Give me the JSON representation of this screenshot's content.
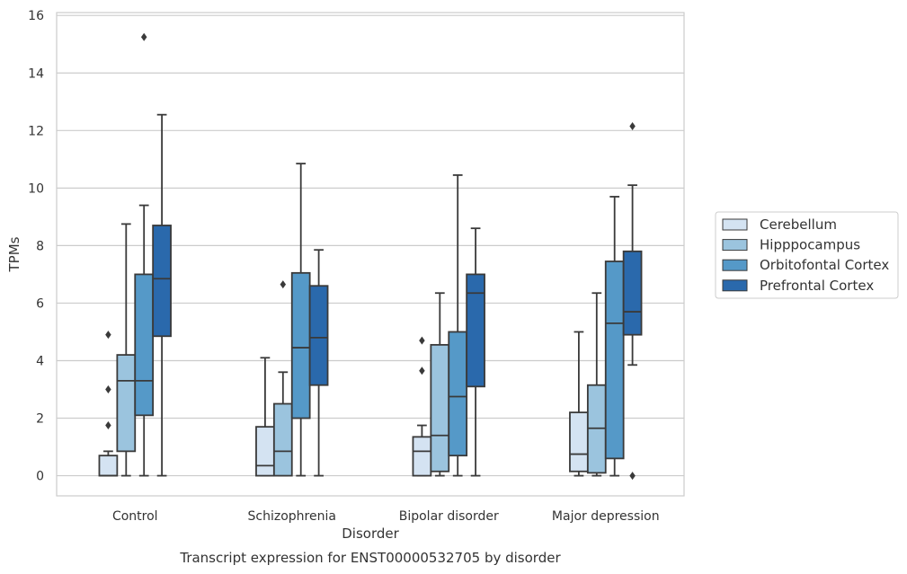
{
  "chart_data": {
    "type": "box",
    "title": "Transcript expression for ENST00000532705 by disorder",
    "xlabel": "Disorder",
    "ylabel": "TPMs",
    "ylim": [
      -0.7,
      16.1
    ],
    "yticks": [
      0,
      2,
      4,
      6,
      8,
      10,
      12,
      14,
      16
    ],
    "grid": true,
    "legend_position": "right",
    "categories": [
      "Control",
      "Schizophrenia",
      "Bipolar disorder",
      "Major depression"
    ],
    "series": [
      {
        "name": "Cerebellum",
        "color": "#d4e3f2",
        "boxes": [
          {
            "whislo": 0,
            "q1": 0,
            "med": 0,
            "q3": 0.7,
            "whishi": 0.85,
            "fliers": [
              1.75,
              3.0,
              4.9
            ]
          },
          {
            "whislo": 0,
            "q1": 0,
            "med": 0.35,
            "q3": 1.7,
            "whishi": 4.1,
            "fliers": []
          },
          {
            "whislo": 0,
            "q1": 0,
            "med": 0.85,
            "q3": 1.35,
            "whishi": 1.75,
            "fliers": [
              3.65,
              4.7
            ]
          },
          {
            "whislo": 0,
            "q1": 0.15,
            "med": 0.75,
            "q3": 2.2,
            "whishi": 5.0,
            "fliers": []
          }
        ]
      },
      {
        "name": "Hipppocampus",
        "color": "#9bc4de",
        "boxes": [
          {
            "whislo": 0,
            "q1": 0.85,
            "med": 3.3,
            "q3": 4.2,
            "whishi": 8.75,
            "fliers": []
          },
          {
            "whislo": 0,
            "q1": 0,
            "med": 0.85,
            "q3": 2.5,
            "whishi": 3.6,
            "fliers": [
              6.65
            ]
          },
          {
            "whislo": 0,
            "q1": 0.15,
            "med": 1.4,
            "q3": 4.55,
            "whishi": 6.35,
            "fliers": []
          },
          {
            "whislo": 0,
            "q1": 0.1,
            "med": 1.65,
            "q3": 3.15,
            "whishi": 6.35,
            "fliers": []
          }
        ]
      },
      {
        "name": "Orbitofontal Cortex",
        "color": "#5599c8",
        "boxes": [
          {
            "whislo": 0,
            "q1": 2.1,
            "med": 3.3,
            "q3": 7.0,
            "whishi": 9.4,
            "fliers": [
              15.25
            ]
          },
          {
            "whislo": 0,
            "q1": 2.0,
            "med": 4.45,
            "q3": 7.05,
            "whishi": 10.85,
            "fliers": []
          },
          {
            "whislo": 0,
            "q1": 0.7,
            "med": 2.75,
            "q3": 5.0,
            "whishi": 10.45,
            "fliers": []
          },
          {
            "whislo": 0,
            "q1": 0.6,
            "med": 5.3,
            "q3": 7.45,
            "whishi": 9.7,
            "fliers": []
          }
        ]
      },
      {
        "name": "Prefrontal Cortex",
        "color": "#2a69ac",
        "boxes": [
          {
            "whislo": 0,
            "q1": 4.85,
            "med": 6.85,
            "q3": 8.7,
            "whishi": 12.55,
            "fliers": []
          },
          {
            "whislo": 0,
            "q1": 3.15,
            "med": 4.8,
            "q3": 6.6,
            "whishi": 7.85,
            "fliers": []
          },
          {
            "whislo": 0,
            "q1": 3.1,
            "med": 6.35,
            "q3": 7.0,
            "whishi": 8.6,
            "fliers": []
          },
          {
            "whislo": 3.85,
            "q1": 4.9,
            "med": 5.7,
            "q3": 7.8,
            "whishi": 10.1,
            "fliers": [
              0.0,
              12.15
            ]
          }
        ]
      }
    ]
  }
}
